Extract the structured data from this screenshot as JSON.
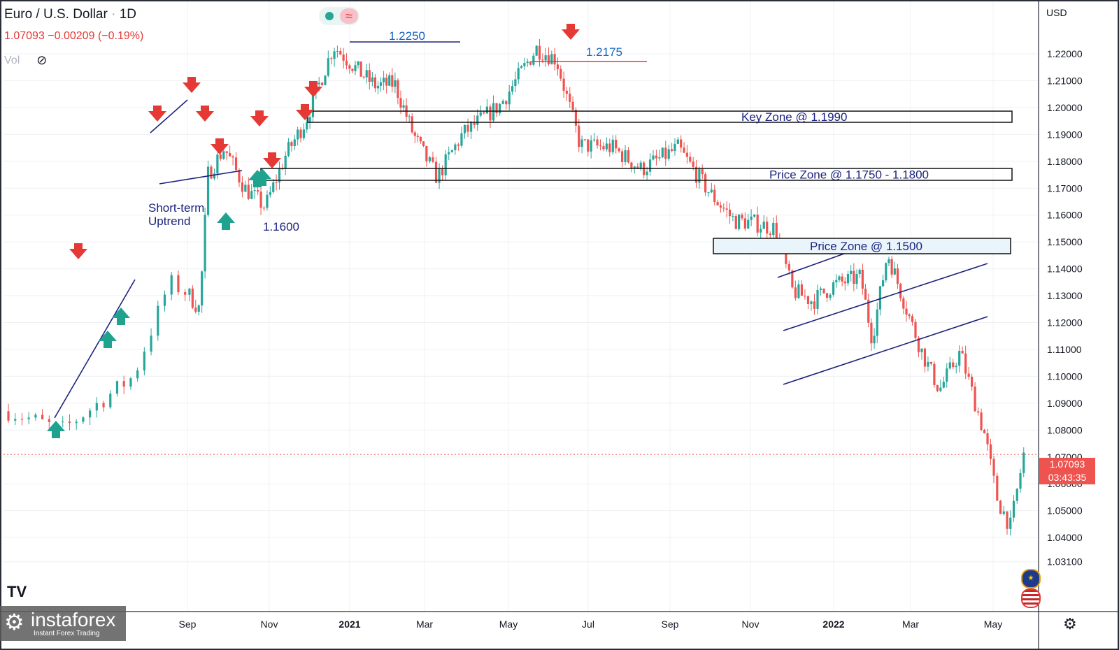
{
  "header": {
    "symbol": "Euro / U.S. Dollar",
    "interval": "1D",
    "last": "1.07093",
    "change": "−0.00209",
    "change_pct": "(−0.19%)",
    "vol_label": "Vol",
    "currency": "USD"
  },
  "price_label": {
    "value": "1.07093",
    "countdown": "03:43:35"
  },
  "branding": {
    "logo": "instaforex",
    "tagline": "Instant Forex Trading"
  },
  "colors": {
    "up": "#26a69a",
    "down": "#ef5350",
    "annotation": "#1a237e",
    "accent_red": "#e53935"
  },
  "chart_data": {
    "type": "candlestick",
    "series_name": "Euro / U.S. Dollar",
    "timeframe": "1D",
    "yticks": [
      "1.22000",
      "1.21000",
      "1.20000",
      "1.19000",
      "1.18000",
      "1.17000",
      "1.16000",
      "1.15000",
      "1.14000",
      "1.13000",
      "1.12000",
      "1.11000",
      "1.10000",
      "1.09000",
      "1.08000",
      "1.07000",
      "1.06000",
      "1.05000",
      "1.04000",
      "1.03100"
    ],
    "xticks": [
      "Sep",
      "Nov",
      "2021",
      "Mar",
      "May",
      "Jul",
      "Sep",
      "Nov",
      "2022",
      "Mar",
      "May"
    ],
    "x": [
      "2020-07",
      "2020-08",
      "2020-09",
      "2020-10",
      "2020-11",
      "2020-12",
      "2021-01",
      "2021-02",
      "2021-03",
      "2021-04",
      "2021-05",
      "2021-06",
      "2021-07",
      "2021-08",
      "2021-09",
      "2021-10",
      "2021-11",
      "2021-12",
      "2022-01",
      "2022-02",
      "2022-03",
      "2022-04",
      "2022-05"
    ],
    "close": [
      1.087,
      1.135,
      1.172,
      1.163,
      1.195,
      1.223,
      1.214,
      1.209,
      1.174,
      1.201,
      1.222,
      1.186,
      1.187,
      1.18,
      1.159,
      1.157,
      1.132,
      1.137,
      1.123,
      1.121,
      1.108,
      1.054,
      1.071
    ],
    "annotations": {
      "levels": [
        "1.2250",
        "1.2175",
        "1.1600"
      ],
      "zones": [
        "Key Zone @ 1.1990",
        "Price Zone @ 1.1750 - 1.1800",
        "Price Zone @ 1.1500"
      ],
      "text": "Short-term\nUptrend"
    },
    "grid": true,
    "legend": "none"
  }
}
